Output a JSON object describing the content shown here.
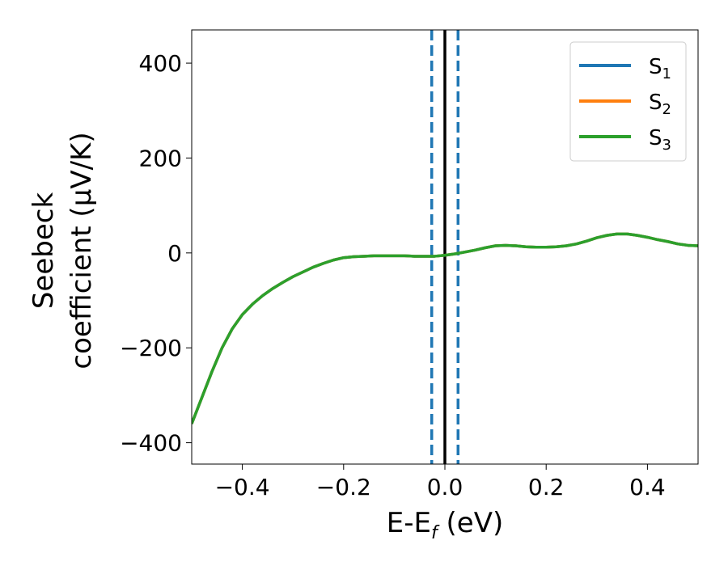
{
  "chart_data": {
    "type": "line",
    "title": "",
    "xlabel": {
      "main": "E-E",
      "sub": "f",
      "tail": " (eV)"
    },
    "ylabel": {
      "line1": "Seebeck",
      "line2": "coefficient  (μV/K)"
    },
    "xlim": [
      -0.5,
      0.5
    ],
    "ylim": [
      -445,
      470
    ],
    "xticks": [
      -0.4,
      -0.2,
      0.0,
      0.2,
      0.4
    ],
    "xtick_labels": [
      "−0.4",
      "−0.2",
      "0.0",
      "0.2",
      "0.4"
    ],
    "yticks": [
      -400,
      -200,
      0,
      200,
      400
    ],
    "ytick_labels": [
      "−400",
      "−200",
      "0",
      "200",
      "400"
    ],
    "grid": false,
    "legend_position": "top-right",
    "vlines": [
      {
        "x": -0.026,
        "style": "dashed",
        "color": "#1f77b4"
      },
      {
        "x": 0.026,
        "style": "dashed",
        "color": "#1f77b4"
      },
      {
        "x": 0.0,
        "style": "solid",
        "color": "#000000"
      }
    ],
    "series": [
      {
        "name": "S",
        "name_sub": "1",
        "color": "#1f77b4",
        "x": [
          -0.5,
          -0.48,
          -0.46,
          -0.44,
          -0.42,
          -0.4,
          -0.38,
          -0.36,
          -0.34,
          -0.32,
          -0.3,
          -0.28,
          -0.26,
          -0.24,
          -0.22,
          -0.2,
          -0.18,
          -0.16,
          -0.14,
          -0.12,
          -0.1,
          -0.08,
          -0.06,
          -0.04,
          -0.02,
          0.0,
          0.02,
          0.04,
          0.06,
          0.08,
          0.1,
          0.12,
          0.14,
          0.16,
          0.18,
          0.2,
          0.22,
          0.24,
          0.26,
          0.28,
          0.3,
          0.32,
          0.34,
          0.36,
          0.38,
          0.4,
          0.42,
          0.44,
          0.46,
          0.48,
          0.5
        ],
        "y": [
          -360,
          -305,
          -250,
          -200,
          -160,
          -130,
          -108,
          -90,
          -75,
          -62,
          -50,
          -40,
          -30,
          -22,
          -15,
          -10,
          -8,
          -7,
          -6,
          -6,
          -6,
          -6,
          -7,
          -7,
          -7,
          -5,
          -2,
          2,
          6,
          11,
          15,
          16,
          15,
          13,
          12,
          12,
          13,
          15,
          19,
          25,
          32,
          37,
          40,
          40,
          37,
          33,
          28,
          24,
          19,
          16,
          15
        ]
      },
      {
        "name": "S",
        "name_sub": "2",
        "color": "#ff7f0e",
        "x": [
          -0.5,
          -0.48,
          -0.46,
          -0.44,
          -0.42,
          -0.4,
          -0.38,
          -0.36,
          -0.34,
          -0.32,
          -0.3,
          -0.28,
          -0.26,
          -0.24,
          -0.22,
          -0.2,
          -0.18,
          -0.16,
          -0.14,
          -0.12,
          -0.1,
          -0.08,
          -0.06,
          -0.04,
          -0.02,
          0.0,
          0.02,
          0.04,
          0.06,
          0.08,
          0.1,
          0.12,
          0.14,
          0.16,
          0.18,
          0.2,
          0.22,
          0.24,
          0.26,
          0.28,
          0.3,
          0.32,
          0.34,
          0.36,
          0.38,
          0.4,
          0.42,
          0.44,
          0.46,
          0.48,
          0.5
        ],
        "y": [
          -360,
          -305,
          -250,
          -200,
          -160,
          -130,
          -108,
          -90,
          -75,
          -62,
          -50,
          -40,
          -30,
          -22,
          -15,
          -10,
          -8,
          -7,
          -6,
          -6,
          -6,
          -6,
          -7,
          -7,
          -7,
          -5,
          -2,
          2,
          6,
          11,
          15,
          16,
          15,
          13,
          12,
          12,
          13,
          15,
          19,
          25,
          32,
          37,
          40,
          40,
          37,
          33,
          28,
          24,
          19,
          16,
          15
        ]
      },
      {
        "name": "S",
        "name_sub": "3",
        "color": "#2ca02c",
        "x": [
          -0.5,
          -0.48,
          -0.46,
          -0.44,
          -0.42,
          -0.4,
          -0.38,
          -0.36,
          -0.34,
          -0.32,
          -0.3,
          -0.28,
          -0.26,
          -0.24,
          -0.22,
          -0.2,
          -0.18,
          -0.16,
          -0.14,
          -0.12,
          -0.1,
          -0.08,
          -0.06,
          -0.04,
          -0.02,
          0.0,
          0.02,
          0.04,
          0.06,
          0.08,
          0.1,
          0.12,
          0.14,
          0.16,
          0.18,
          0.2,
          0.22,
          0.24,
          0.26,
          0.28,
          0.3,
          0.32,
          0.34,
          0.36,
          0.38,
          0.4,
          0.42,
          0.44,
          0.46,
          0.48,
          0.5
        ],
        "y": [
          -360,
          -305,
          -250,
          -200,
          -160,
          -130,
          -108,
          -90,
          -75,
          -62,
          -50,
          -40,
          -30,
          -22,
          -15,
          -10,
          -8,
          -7,
          -6,
          -6,
          -6,
          -6,
          -7,
          -7,
          -7,
          -5,
          -2,
          2,
          6,
          11,
          15,
          16,
          15,
          13,
          12,
          12,
          13,
          15,
          19,
          25,
          32,
          37,
          40,
          40,
          37,
          33,
          28,
          24,
          19,
          16,
          15
        ]
      }
    ]
  }
}
